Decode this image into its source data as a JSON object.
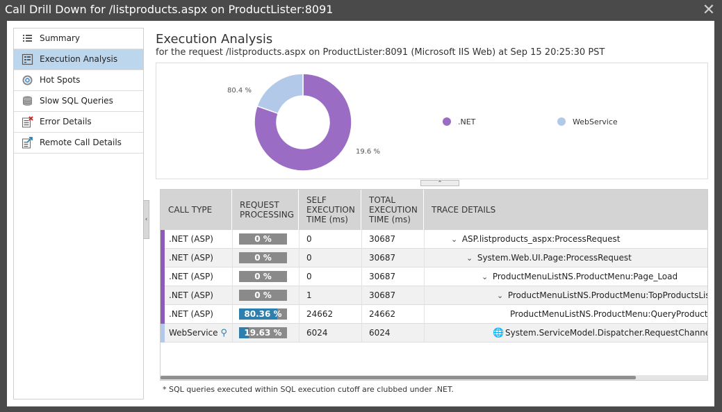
{
  "window": {
    "title": "Call Drill Down for /listproducts.aspx on ProductLister:8091"
  },
  "sidebar": {
    "items": [
      {
        "label": "Summary",
        "icon": "list-icon"
      },
      {
        "label": "Execution Analysis",
        "icon": "execution-analysis-icon",
        "active": true
      },
      {
        "label": "Hot Spots",
        "icon": "target-icon"
      },
      {
        "label": "Slow SQL Queries",
        "icon": "database-icon"
      },
      {
        "label": "Error Details",
        "icon": "error-list-icon"
      },
      {
        "label": "Remote Call Details",
        "icon": "remote-call-icon"
      }
    ]
  },
  "main": {
    "title": "Execution Analysis",
    "subtitle": "for the request /listproducts.aspx on ProductLister:8091 (Microsoft IIS Web) at Sep 15  20:25:30 PST"
  },
  "chart_data": {
    "type": "pie",
    "categories": [
      ".NET",
      "WebService"
    ],
    "values": [
      80.4,
      19.6
    ],
    "labels": [
      "80.4 %",
      "19.6 %"
    ],
    "colors": [
      "#9b6cc4",
      "#b3c9e9"
    ],
    "legend": "right"
  },
  "table": {
    "columns": [
      {
        "label": "CALL TYPE"
      },
      {
        "label": "REQUEST\nPROCESSING"
      },
      {
        "label": "SELF\nEXECUTION\nTIME (ms)"
      },
      {
        "label": "TOTAL\nEXECUTION\nTIME (ms)"
      },
      {
        "label": "TRACE DETAILS"
      }
    ],
    "rows": [
      {
        "call_type": ".NET (ASP)",
        "processing": "0 %",
        "processing_pct": 0,
        "self": "0",
        "total": "30687",
        "trace": "ASP.listproducts_aspx:ProcessRequest",
        "marker_color": "#8e5cb8"
      },
      {
        "call_type": ".NET (ASP)",
        "processing": "0 %",
        "processing_pct": 0,
        "self": "0",
        "total": "30687",
        "trace": "System.Web.UI.Page:ProcessRequest",
        "marker_color": "#8e5cb8"
      },
      {
        "call_type": ".NET (ASP)",
        "processing": "0 %",
        "processing_pct": 0,
        "self": "0",
        "total": "30687",
        "trace": "ProductMenuListNS.ProductMenu:Page_Load",
        "marker_color": "#8e5cb8"
      },
      {
        "call_type": ".NET (ASP)",
        "processing": "0 %",
        "processing_pct": 0,
        "self": "1",
        "total": "30687",
        "trace": "ProductMenuListNS.ProductMenu:TopProductsList",
        "marker_color": "#8e5cb8"
      },
      {
        "call_type": ".NET (ASP)",
        "processing": "80.36 %",
        "processing_pct": 80.36,
        "self": "24662",
        "total": "24662",
        "trace": "ProductMenuListNS.ProductMenu:QueryProducts",
        "marker_color": "#8e5cb8"
      },
      {
        "call_type": "WebService",
        "processing": "19.63 %",
        "processing_pct": 19.63,
        "self": "6024",
        "total": "6024",
        "trace": "System.ServiceModel.Dispatcher.RequestChanne",
        "marker_color": "#b3c9e9"
      }
    ]
  },
  "footnote": "* SQL queries executed within SQL execution cutoff are clubbed under .NET."
}
